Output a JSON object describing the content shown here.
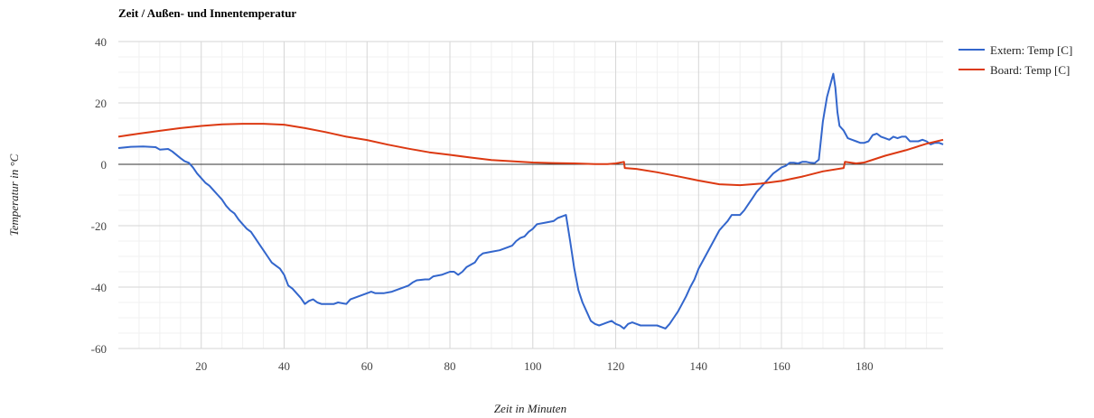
{
  "chart_data": {
    "type": "line",
    "title": "Zeit / Außen- und Innentemperatur",
    "xlabel": "Zeit in Minuten",
    "ylabel": "Temperatur in °C",
    "xlim": [
      0,
      199
    ],
    "ylim": [
      -60,
      40
    ],
    "x_ticks": [
      20,
      40,
      60,
      80,
      100,
      120,
      140,
      160,
      180
    ],
    "y_ticks": [
      40,
      20,
      0,
      -20,
      -40,
      -60
    ],
    "grid": true,
    "legend_position": "right",
    "series": [
      {
        "name": "Extern: Temp [C]",
        "color": "#3366cc",
        "points": [
          [
            0,
            5.3
          ],
          [
            3,
            5.7
          ],
          [
            6,
            5.8
          ],
          [
            9,
            5.6
          ],
          [
            10,
            4.8
          ],
          [
            12,
            5
          ],
          [
            13,
            4.2
          ],
          [
            15,
            2
          ],
          [
            16,
            1
          ],
          [
            17,
            0.5
          ],
          [
            18,
            -1
          ],
          [
            19,
            -3
          ],
          [
            20,
            -4.5
          ],
          [
            21,
            -6
          ],
          [
            22,
            -7
          ],
          [
            23,
            -8.5
          ],
          [
            24,
            -10
          ],
          [
            25,
            -11.5
          ],
          [
            26,
            -13.5
          ],
          [
            27,
            -15
          ],
          [
            28,
            -16
          ],
          [
            29,
            -18
          ],
          [
            30,
            -19.5
          ],
          [
            31,
            -21
          ],
          [
            32,
            -22
          ],
          [
            33,
            -24
          ],
          [
            34,
            -26
          ],
          [
            35,
            -28
          ],
          [
            36,
            -30
          ],
          [
            37,
            -32
          ],
          [
            38,
            -33
          ],
          [
            39,
            -34
          ],
          [
            40,
            -36
          ],
          [
            41,
            -39.5
          ],
          [
            42,
            -40.5
          ],
          [
            43,
            -42
          ],
          [
            44,
            -43.5
          ],
          [
            45,
            -45.5
          ],
          [
            46,
            -44.5
          ],
          [
            47,
            -44
          ],
          [
            48,
            -45
          ],
          [
            49,
            -45.5
          ],
          [
            50,
            -45.5
          ],
          [
            52,
            -45.5
          ],
          [
            53,
            -45
          ],
          [
            55,
            -45.5
          ],
          [
            56,
            -44
          ],
          [
            58,
            -43
          ],
          [
            60,
            -42
          ],
          [
            61,
            -41.5
          ],
          [
            62,
            -42
          ],
          [
            64,
            -42
          ],
          [
            66,
            -41.5
          ],
          [
            68,
            -40.5
          ],
          [
            70,
            -39.5
          ],
          [
            71,
            -38.5
          ],
          [
            72,
            -37.8
          ],
          [
            74,
            -37.5
          ],
          [
            75,
            -37.5
          ],
          [
            76,
            -36.5
          ],
          [
            78,
            -36
          ],
          [
            80,
            -35
          ],
          [
            81,
            -35
          ],
          [
            82,
            -36
          ],
          [
            83,
            -35
          ],
          [
            84,
            -33.5
          ],
          [
            86,
            -32
          ],
          [
            87,
            -30
          ],
          [
            88,
            -29
          ],
          [
            90,
            -28.5
          ],
          [
            92,
            -28
          ],
          [
            94,
            -27
          ],
          [
            95,
            -26.5
          ],
          [
            96,
            -25
          ],
          [
            97,
            -24
          ],
          [
            98,
            -23.5
          ],
          [
            99,
            -22
          ],
          [
            100,
            -21
          ],
          [
            101,
            -19.5
          ],
          [
            103,
            -19
          ],
          [
            105,
            -18.5
          ],
          [
            106,
            -17.5
          ],
          [
            107,
            -17
          ],
          [
            108,
            -16.5
          ],
          [
            109,
            -25
          ],
          [
            110,
            -34
          ],
          [
            111,
            -41
          ],
          [
            112,
            -45
          ],
          [
            113,
            -48
          ],
          [
            114,
            -51
          ],
          [
            115,
            -52
          ],
          [
            116,
            -52.5
          ],
          [
            117,
            -52
          ],
          [
            118,
            -51.5
          ],
          [
            119,
            -51
          ],
          [
            120,
            -52
          ],
          [
            121,
            -52.5
          ],
          [
            122,
            -53.5
          ],
          [
            123,
            -52
          ],
          [
            124,
            -51.5
          ],
          [
            125,
            -52
          ],
          [
            126,
            -52.5
          ],
          [
            127,
            -52.5
          ],
          [
            128,
            -52.5
          ],
          [
            129,
            -52.5
          ],
          [
            130,
            -52.5
          ],
          [
            131,
            -53
          ],
          [
            132,
            -53.5
          ],
          [
            133,
            -52
          ],
          [
            134,
            -50
          ],
          [
            135,
            -48
          ],
          [
            136,
            -45.5
          ],
          [
            137,
            -43
          ],
          [
            138,
            -40
          ],
          [
            139,
            -37.5
          ],
          [
            140,
            -34
          ],
          [
            141,
            -31.5
          ],
          [
            142,
            -29
          ],
          [
            143,
            -26.5
          ],
          [
            144,
            -24
          ],
          [
            145,
            -21.5
          ],
          [
            146,
            -20
          ],
          [
            147,
            -18.5
          ],
          [
            148,
            -16.5
          ],
          [
            149,
            -16.5
          ],
          [
            150,
            -16.5
          ],
          [
            151,
            -15
          ],
          [
            152,
            -13
          ],
          [
            153,
            -11
          ],
          [
            154,
            -9
          ],
          [
            155,
            -7.5
          ],
          [
            156,
            -6
          ],
          [
            157,
            -4.5
          ],
          [
            158,
            -3
          ],
          [
            159,
            -2
          ],
          [
            160,
            -1
          ],
          [
            161,
            -0.5
          ],
          [
            162,
            0.5
          ],
          [
            163,
            0.5
          ],
          [
            164,
            0.3
          ],
          [
            165,
            0.8
          ],
          [
            166,
            0.8
          ],
          [
            167,
            0.5
          ],
          [
            168,
            0.4
          ],
          [
            169,
            1.5
          ],
          [
            170,
            14
          ],
          [
            171,
            22
          ],
          [
            172,
            27
          ],
          [
            172.5,
            29.5
          ],
          [
            173,
            25
          ],
          [
            173.5,
            17
          ],
          [
            174,
            12.5
          ],
          [
            175,
            11
          ],
          [
            176,
            8.5
          ],
          [
            177,
            8
          ],
          [
            178,
            7.5
          ],
          [
            179,
            7
          ],
          [
            180,
            7
          ],
          [
            181,
            7.5
          ],
          [
            182,
            9.5
          ],
          [
            183,
            10
          ],
          [
            184,
            9
          ],
          [
            185,
            8.5
          ],
          [
            186,
            8
          ],
          [
            187,
            9
          ],
          [
            188,
            8.5
          ],
          [
            189,
            9
          ],
          [
            190,
            9
          ],
          [
            191,
            7.5
          ],
          [
            192,
            7.5
          ],
          [
            193,
            7.5
          ],
          [
            194,
            8
          ],
          [
            195,
            7.5
          ],
          [
            196,
            6.5
          ],
          [
            197,
            7
          ],
          [
            198,
            7
          ],
          [
            199,
            6.5
          ]
        ]
      },
      {
        "name": "Board: Temp [C]",
        "color": "#dc3912",
        "points": [
          [
            0,
            9
          ],
          [
            5,
            10
          ],
          [
            10,
            10.9
          ],
          [
            15,
            11.8
          ],
          [
            20,
            12.5
          ],
          [
            25,
            13
          ],
          [
            30,
            13.2
          ],
          [
            35,
            13.2
          ],
          [
            40,
            12.9
          ],
          [
            45,
            11.8
          ],
          [
            50,
            10.5
          ],
          [
            55,
            9
          ],
          [
            60,
            7.9
          ],
          [
            65,
            6.4
          ],
          [
            70,
            5.1
          ],
          [
            75,
            3.9
          ],
          [
            80,
            3.1
          ],
          [
            85,
            2.2
          ],
          [
            90,
            1.4
          ],
          [
            95,
            1
          ],
          [
            100,
            0.6
          ],
          [
            105,
            0.4
          ],
          [
            110,
            0.3
          ],
          [
            115,
            0.1
          ],
          [
            118,
            0.1
          ],
          [
            120,
            0.3
          ],
          [
            122,
            0.8
          ],
          [
            122.2,
            -1.2
          ],
          [
            125,
            -1.5
          ],
          [
            130,
            -2.6
          ],
          [
            135,
            -3.9
          ],
          [
            140,
            -5.3
          ],
          [
            145,
            -6.5
          ],
          [
            150,
            -6.8
          ],
          [
            155,
            -6.3
          ],
          [
            160,
            -5.4
          ],
          [
            165,
            -4
          ],
          [
            170,
            -2.3
          ],
          [
            175,
            -1.2
          ],
          [
            175.3,
            0.8
          ],
          [
            178,
            0.3
          ],
          [
            180,
            0.6
          ],
          [
            185,
            2.8
          ],
          [
            190,
            4.6
          ],
          [
            195,
            6.7
          ],
          [
            199,
            8
          ]
        ]
      }
    ]
  }
}
